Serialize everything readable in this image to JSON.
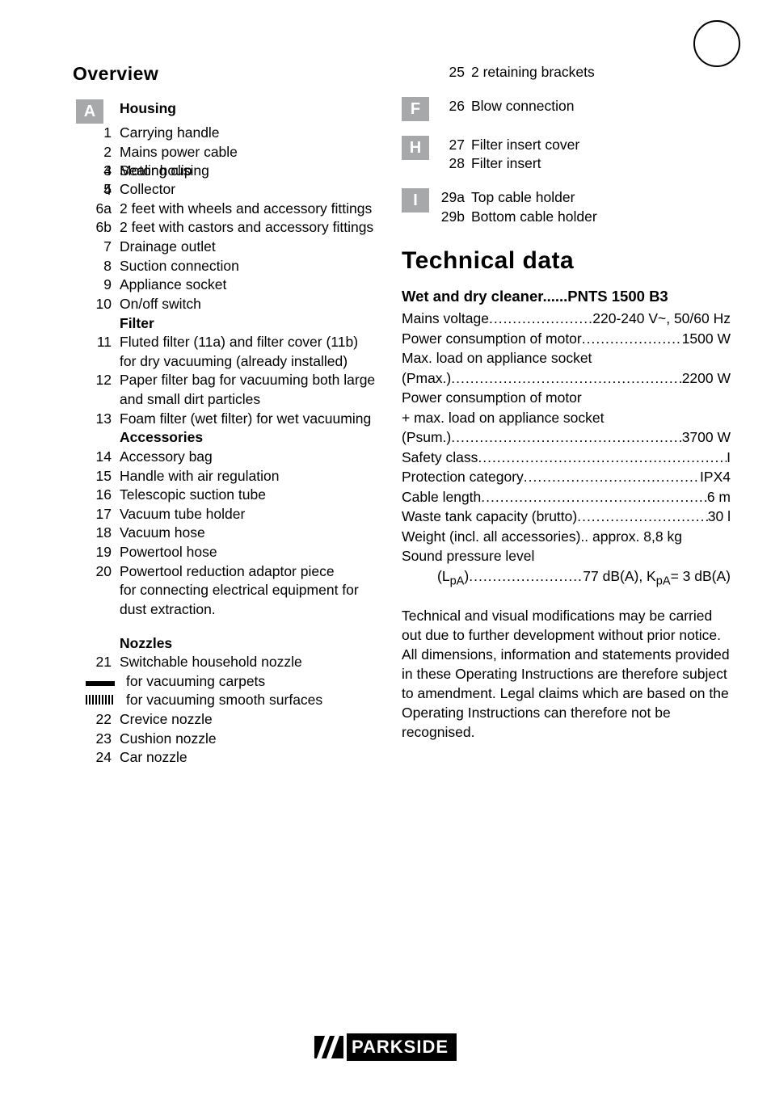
{
  "langCircle": {
    "borderColor": "#000000"
  },
  "overviewHeading": "Overview",
  "letterColors": {
    "bg": "#a6a8aa",
    "fg": "#ffffff"
  },
  "sectionA": {
    "letter": "A",
    "heading": "Housing",
    "items": [
      {
        "n": "1",
        "t": "Carrying handle"
      },
      {
        "n": "2",
        "t": "Mains power cable"
      },
      {
        "n": "3",
        "t": "Motor housing"
      },
      {
        "n": "4",
        "t": "Sealing clip"
      },
      {
        "n": "5",
        "t": "Collector"
      },
      {
        "n": "6a",
        "t": "2 feet with wheels and accessory fittings"
      },
      {
        "n": "6b",
        "t": "2 feet with castors and accessory fittings"
      },
      {
        "n": "7",
        "t": "Drainage outlet"
      },
      {
        "n": "8",
        "t": "Suction connection"
      },
      {
        "n": "9",
        "t": "Appliance socket"
      },
      {
        "n": "10",
        "t": "On/off switch"
      }
    ]
  },
  "filter": {
    "heading": "Filter",
    "items": [
      {
        "n": "11",
        "t": "Fluted filter (11a) and filter cover (11b) for dry vacuuming (already installed)"
      },
      {
        "n": "12",
        "t": "Paper filter bag for vacuuming both large and small dirt particles"
      },
      {
        "n": "13",
        "t": "Foam filter (wet filter) for wet vacuuming"
      }
    ]
  },
  "accessories": {
    "heading": "Accessories",
    "items": [
      {
        "n": "14",
        "t": "Accessory bag"
      },
      {
        "n": "15",
        "t": "Handle with air regulation"
      },
      {
        "n": "16",
        "t": "Telescopic suction tube"
      },
      {
        "n": "17",
        "t": "Vacuum tube holder"
      },
      {
        "n": "18",
        "t": "Vacuum hose"
      },
      {
        "n": "19",
        "t": "Powertool hose"
      },
      {
        "n": "20",
        "t": "Powertool reduction adaptor piece"
      },
      {
        "n": "",
        "t": "for connecting electrical equipment for dust extraction."
      }
    ]
  },
  "nozzles": {
    "heading": "Nozzles",
    "item21": {
      "n": "21",
      "t": "Switchable household nozzle"
    },
    "iconCarpetLabel": "for vacuuming carpets",
    "iconSmoothLabel": "for vacuuming smooth surfaces",
    "rest": [
      {
        "n": "22",
        "t": "Crevice nozzle"
      },
      {
        "n": "23",
        "t": "Cushion nozzle"
      },
      {
        "n": "24",
        "t": "Car nozzle"
      }
    ]
  },
  "right": {
    "item25": {
      "n": "25",
      "t": "2 retaining brackets"
    },
    "F": {
      "letter": "F",
      "items": [
        {
          "n": "26",
          "t": "Blow connection"
        }
      ]
    },
    "H": {
      "letter": "H",
      "items": [
        {
          "n": "27",
          "t": "Filter insert cover"
        },
        {
          "n": "28",
          "t": "Filter insert"
        }
      ]
    },
    "I": {
      "letter": "I",
      "items": [
        {
          "n": "29a",
          "t": "Top cable holder"
        },
        {
          "n": "29b",
          "t": "Bottom cable holder"
        }
      ]
    }
  },
  "techHeading": "Technical data",
  "techSubHeading": "Wet and dry cleaner......PNTS 1500 B3",
  "techLines": [
    {
      "lead": "Mains voltage",
      "val": "220-240 V~, 50/60 Hz"
    },
    {
      "lead": "Power consumption of motor",
      "val": "1500 W"
    },
    {
      "plain": "Max. load on appliance socket "
    },
    {
      "lead": "(Pmax.) ",
      "val": "2200 W"
    },
    {
      "plain": "Power consumption of motor "
    },
    {
      "plain": "+ max. load on appliance socket"
    },
    {
      "lead": "(Psum.) ",
      "val": " 3700 W"
    },
    {
      "lead": "Safety class ",
      "val": " I"
    },
    {
      "lead": "Protection category",
      "val": "IPX4"
    },
    {
      "lead": "Cable length",
      "val": "6 m"
    },
    {
      "lead": "Waste tank capacity (brutto) ",
      "val": " 30 l"
    },
    {
      "lead": "Weight (incl. all accessories)",
      "dots": false,
      "mid": ".. ",
      "val": "approx. 8,8 kg"
    },
    {
      "plain": "Sound pressure level"
    }
  ],
  "soundPressure": {
    "label": "(L",
    "sub1": "pA",
    "mid": ") ",
    "val": " 77 dB(A), K",
    "sub2": "pA",
    "tail": "= 3 dB(A)"
  },
  "paragraph": "Technical and visual modifications may be carried out due to further development without prior notice. All dimensions, information and statements provided in these Operating Instructions are therefore subject to amendment. Legal claims which are based on the Operating Instructions can therefore not be recognised.",
  "brand": "PARKSIDE"
}
